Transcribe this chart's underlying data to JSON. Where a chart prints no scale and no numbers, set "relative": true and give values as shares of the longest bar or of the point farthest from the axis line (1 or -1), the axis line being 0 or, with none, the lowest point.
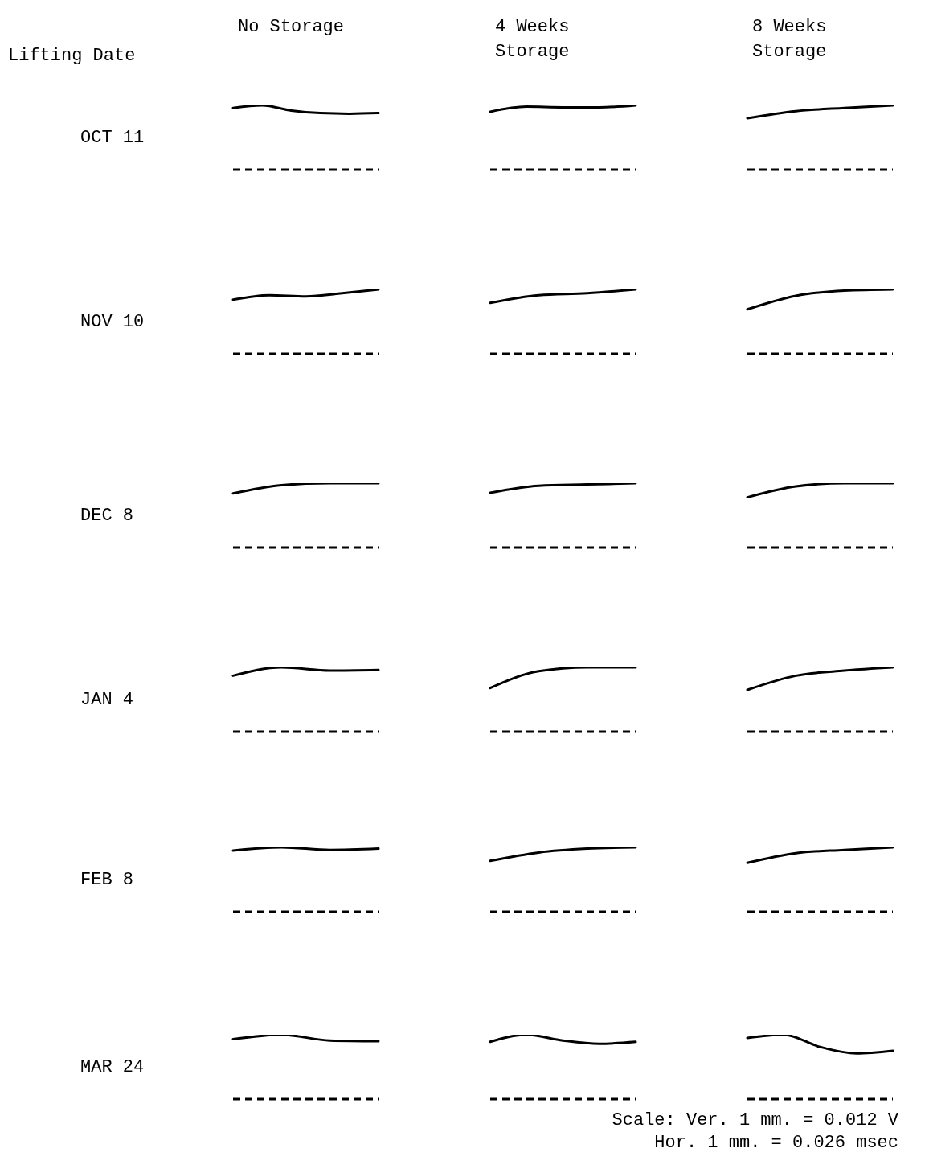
{
  "chart_data": [
    {
      "type": "line",
      "relative": true,
      "title": "No Storage",
      "ylabel": "OCT 11",
      "annotations": [
        "Lifting Date"
      ],
      "tick_labels": false,
      "categories": [
        null,
        null,
        null,
        null,
        null,
        null
      ],
      "series": [
        {
          "color": "#000000",
          "line_style": "solid",
          "values": [
            0.96,
            1,
            0.92,
            0.88,
            0.87,
            0.88
          ]
        }
      ],
      "ref_lines": [
        {
          "axis": "y",
          "value": 0,
          "line_style": "dashed"
        }
      ]
    },
    {
      "type": "line",
      "relative": true,
      "title": "4 Weeks\nStorage",
      "tick_labels": false,
      "categories": [
        null,
        null,
        null,
        null,
        null
      ],
      "series": [
        {
          "color": "#000000",
          "line_style": "solid",
          "values": [
            0.9,
            0.98,
            0.97,
            0.97,
            1
          ]
        }
      ],
      "ref_lines": [
        {
          "axis": "y",
          "value": 0,
          "line_style": "dashed"
        }
      ]
    },
    {
      "type": "line",
      "relative": true,
      "title": "8 Weeks\nStorage",
      "tick_labels": false,
      "categories": [
        null,
        null,
        null,
        null
      ],
      "series": [
        {
          "color": "#000000",
          "line_style": "solid",
          "values": [
            0.8,
            0.91,
            0.96,
            1
          ]
        }
      ],
      "ref_lines": [
        {
          "axis": "y",
          "value": 0,
          "line_style": "dashed"
        }
      ]
    },
    {
      "type": "line",
      "relative": true,
      "ylabel": "NOV 10",
      "tick_labels": false,
      "categories": [
        null,
        null,
        null,
        null,
        null
      ],
      "series": [
        {
          "color": "#000000",
          "line_style": "solid",
          "values": [
            0.84,
            0.91,
            0.89,
            0.94,
            1
          ]
        }
      ],
      "ref_lines": [
        {
          "axis": "y",
          "value": 0,
          "line_style": "dashed"
        }
      ]
    },
    {
      "type": "line",
      "relative": true,
      "tick_labels": false,
      "categories": [
        null,
        null,
        null,
        null
      ],
      "series": [
        {
          "color": "#000000",
          "line_style": "solid",
          "values": [
            0.79,
            0.91,
            0.94,
            1
          ]
        }
      ],
      "ref_lines": [
        {
          "axis": "y",
          "value": 0,
          "line_style": "dashed"
        }
      ]
    },
    {
      "type": "line",
      "relative": true,
      "tick_labels": false,
      "categories": [
        null,
        null,
        null,
        null
      ],
      "series": [
        {
          "color": "#000000",
          "line_style": "solid",
          "values": [
            0.69,
            0.9,
            0.98,
            1
          ]
        }
      ],
      "ref_lines": [
        {
          "axis": "y",
          "value": 0,
          "line_style": "dashed"
        }
      ]
    },
    {
      "type": "line",
      "relative": true,
      "ylabel": "DEC 8",
      "tick_labels": false,
      "categories": [
        null,
        null,
        null,
        null
      ],
      "series": [
        {
          "color": "#000000",
          "line_style": "solid",
          "values": [
            0.84,
            0.97,
            1,
            1
          ]
        }
      ],
      "ref_lines": [
        {
          "axis": "y",
          "value": 0,
          "line_style": "dashed"
        }
      ]
    },
    {
      "type": "line",
      "relative": true,
      "tick_labels": false,
      "categories": [
        null,
        null,
        null,
        null
      ],
      "series": [
        {
          "color": "#000000",
          "line_style": "solid",
          "values": [
            0.85,
            0.96,
            0.98,
            1
          ]
        }
      ],
      "ref_lines": [
        {
          "axis": "y",
          "value": 0,
          "line_style": "dashed"
        }
      ]
    },
    {
      "type": "line",
      "relative": true,
      "tick_labels": false,
      "categories": [
        null,
        null,
        null,
        null
      ],
      "series": [
        {
          "color": "#000000",
          "line_style": "solid",
          "values": [
            0.78,
            0.95,
            1,
            1
          ]
        }
      ],
      "ref_lines": [
        {
          "axis": "y",
          "value": 0,
          "line_style": "dashed"
        }
      ]
    },
    {
      "type": "line",
      "relative": true,
      "ylabel": "JAN 4",
      "tick_labels": false,
      "categories": [
        null,
        null,
        null,
        null
      ],
      "series": [
        {
          "color": "#000000",
          "line_style": "solid",
          "values": [
            0.87,
            1,
            0.95,
            0.96
          ]
        }
      ],
      "ref_lines": [
        {
          "axis": "y",
          "value": 0,
          "line_style": "dashed"
        }
      ]
    },
    {
      "type": "line",
      "relative": true,
      "tick_labels": false,
      "categories": [
        null,
        null,
        null,
        null
      ],
      "series": [
        {
          "color": "#000000",
          "line_style": "solid",
          "values": [
            0.68,
            0.94,
            1,
            1
          ]
        }
      ],
      "ref_lines": [
        {
          "axis": "y",
          "value": 0,
          "line_style": "dashed"
        }
      ]
    },
    {
      "type": "line",
      "relative": true,
      "tick_labels": false,
      "categories": [
        null,
        null,
        null,
        null
      ],
      "series": [
        {
          "color": "#000000",
          "line_style": "solid",
          "values": [
            0.65,
            0.87,
            0.95,
            1
          ]
        }
      ],
      "ref_lines": [
        {
          "axis": "y",
          "value": 0,
          "line_style": "dashed"
        }
      ]
    },
    {
      "type": "line",
      "relative": true,
      "ylabel": "FEB 8",
      "tick_labels": false,
      "categories": [
        null,
        null,
        null,
        null
      ],
      "series": [
        {
          "color": "#000000",
          "line_style": "solid",
          "values": [
            0.95,
            1,
            0.96,
            0.98
          ]
        }
      ],
      "ref_lines": [
        {
          "axis": "y",
          "value": 0,
          "line_style": "dashed"
        }
      ]
    },
    {
      "type": "line",
      "relative": true,
      "tick_labels": false,
      "categories": [
        null,
        null,
        null,
        null
      ],
      "series": [
        {
          "color": "#000000",
          "line_style": "solid",
          "values": [
            0.79,
            0.92,
            0.98,
            1
          ]
        }
      ],
      "ref_lines": [
        {
          "axis": "y",
          "value": 0,
          "line_style": "dashed"
        }
      ]
    },
    {
      "type": "line",
      "relative": true,
      "tick_labels": false,
      "categories": [
        null,
        null,
        null,
        null
      ],
      "series": [
        {
          "color": "#000000",
          "line_style": "solid",
          "values": [
            0.76,
            0.91,
            0.96,
            1
          ]
        }
      ],
      "ref_lines": [
        {
          "axis": "y",
          "value": 0,
          "line_style": "dashed"
        }
      ]
    },
    {
      "type": "line",
      "relative": true,
      "ylabel": "MAR 24",
      "tick_labels": false,
      "categories": [
        null,
        null,
        null,
        null
      ],
      "series": [
        {
          "color": "#000000",
          "line_style": "solid",
          "values": [
            0.93,
            1,
            0.91,
            0.9
          ]
        }
      ],
      "ref_lines": [
        {
          "axis": "y",
          "value": 0,
          "line_style": "dashed"
        }
      ]
    },
    {
      "type": "line",
      "relative": true,
      "tick_labels": false,
      "categories": [
        null,
        null,
        null,
        null,
        null
      ],
      "series": [
        {
          "color": "#000000",
          "line_style": "solid",
          "values": [
            0.89,
            1,
            0.91,
            0.86,
            0.89
          ]
        }
      ],
      "ref_lines": [
        {
          "axis": "y",
          "value": 0,
          "line_style": "dashed"
        }
      ]
    },
    {
      "type": "line",
      "relative": true,
      "tick_labels": false,
      "annotations": [
        "Scale: Ver. 1 mm. = 0.012 V",
        "Hor. 1 mm. = 0.026 msec"
      ],
      "categories": [
        null,
        null,
        null,
        null,
        null
      ],
      "series": [
        {
          "color": "#000000",
          "line_style": "solid",
          "values": [
            0.95,
            1,
            0.81,
            0.71,
            0.75
          ]
        }
      ],
      "ref_lines": [
        {
          "axis": "y",
          "value": 0,
          "line_style": "dashed"
        }
      ]
    }
  ]
}
